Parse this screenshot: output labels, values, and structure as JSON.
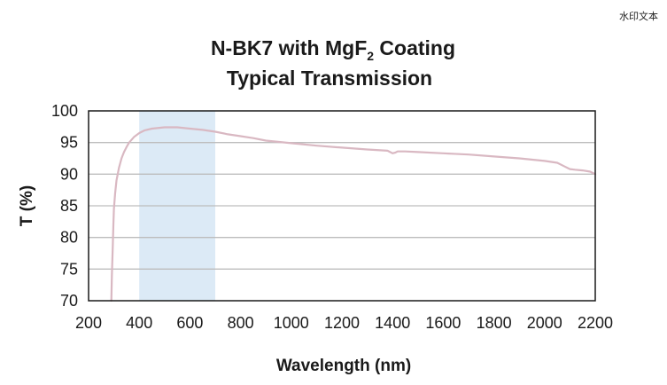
{
  "watermark": "水印文本",
  "chart_data": {
    "type": "line",
    "title": "N-BK7 with MgF₂ Coating",
    "title_parts": {
      "prefix": "N-BK7 with MgF",
      "subscript": "2",
      "suffix": " Coating"
    },
    "subtitle": "Typical Transmission",
    "xlabel": "Wavelength (nm)",
    "ylabel": "T (%)",
    "xlim": [
      200,
      2200
    ],
    "ylim": [
      70,
      100
    ],
    "xticks": [
      200,
      400,
      600,
      800,
      1000,
      1200,
      1400,
      1600,
      1800,
      2000,
      2200
    ],
    "yticks": [
      70,
      75,
      80,
      85,
      90,
      95,
      100
    ],
    "grid": true,
    "highlight_band": {
      "x_start": 400,
      "x_end": 700,
      "color": "#dceaf6"
    },
    "series": [
      {
        "color": "#d9b8c2",
        "x": [
          290,
          292,
          295,
          298,
          300,
          305,
          310,
          320,
          330,
          340,
          350,
          360,
          380,
          400,
          420,
          450,
          500,
          550,
          600,
          650,
          700,
          750,
          800,
          850,
          900,
          1000,
          1100,
          1200,
          1300,
          1380,
          1400,
          1410,
          1420,
          1450,
          1500,
          1600,
          1700,
          1800,
          1900,
          2000,
          2050,
          2080,
          2100,
          2120,
          2150,
          2180,
          2200
        ],
        "values": [
          70,
          74,
          78,
          82,
          84.5,
          87,
          89,
          91,
          92.5,
          93.5,
          94.3,
          95,
          95.9,
          96.5,
          96.9,
          97.2,
          97.4,
          97.4,
          97.2,
          97,
          96.7,
          96.3,
          96,
          95.7,
          95.3,
          94.9,
          94.5,
          94.2,
          93.9,
          93.7,
          93.3,
          93.4,
          93.6,
          93.6,
          93.5,
          93.3,
          93.1,
          92.8,
          92.5,
          92.1,
          91.8,
          91.2,
          90.8,
          90.7,
          90.6,
          90.4,
          90
        ]
      }
    ]
  }
}
